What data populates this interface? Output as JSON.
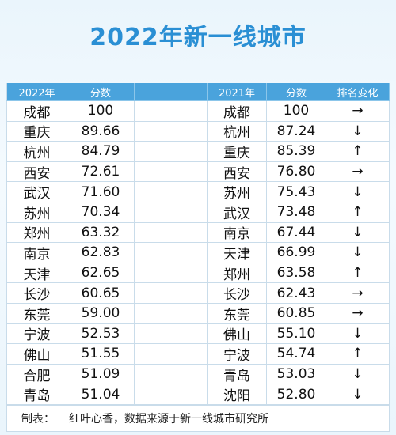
{
  "title": "2022年新一线城市",
  "table": {
    "header": [
      "2022年",
      "分数",
      "2021年",
      "分数",
      "排名变化"
    ],
    "rows": [
      [
        "成都",
        "100",
        "成都",
        "100",
        "→"
      ],
      [
        "重庆",
        "89.66",
        "杭州",
        "87.24",
        "↓"
      ],
      [
        "杭州",
        "84.79",
        "重庆",
        "85.39",
        "↑"
      ],
      [
        "西安",
        "72.61",
        "西安",
        "76.80",
        "→"
      ],
      [
        "武汉",
        "71.60",
        "苏州",
        "75.43",
        "↓"
      ],
      [
        "苏州",
        "70.34",
        "武汉",
        "73.48",
        "↑"
      ],
      [
        "郑州",
        "63.32",
        "南京",
        "67.44",
        "↓"
      ],
      [
        "南京",
        "62.83",
        "天津",
        "66.99",
        "↓"
      ],
      [
        "天津",
        "62.65",
        "郑州",
        "63.58",
        "↑"
      ],
      [
        "长沙",
        "60.65",
        "长沙",
        "62.43",
        "→"
      ],
      [
        "东莞",
        "59.00",
        "东莞",
        "60.85",
        "→"
      ],
      [
        "宁波",
        "52.53",
        "佛山",
        "55.10",
        "↓"
      ],
      [
        "佛山",
        "51.55",
        "宁波",
        "54.74",
        "↑"
      ],
      [
        "合肥",
        "51.09",
        "青岛",
        "53.03",
        "↓"
      ],
      [
        "青岛",
        "51.04",
        "沈阳",
        "52.80",
        "↓"
      ]
    ]
  },
  "footer": {
    "label": "制表：",
    "text": "红叶心香，数据来源于新一线城市研究所"
  }
}
